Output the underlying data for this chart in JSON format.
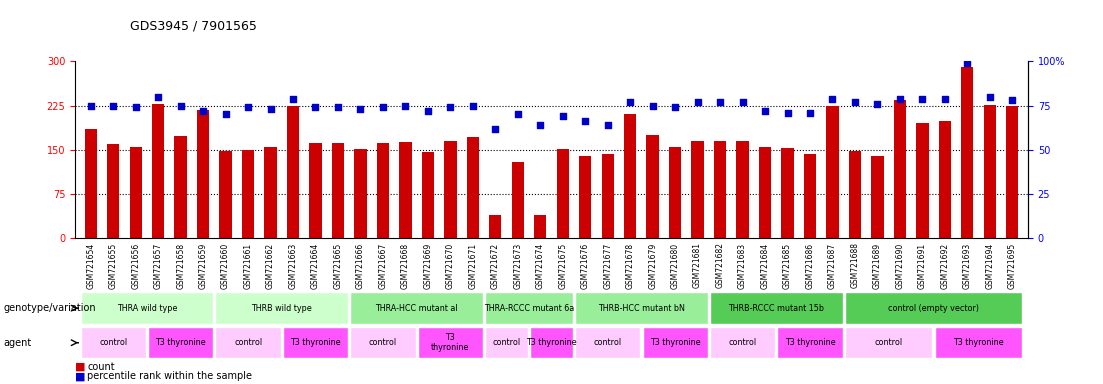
{
  "title": "GDS3945 / 7901565",
  "samples": [
    "GSM721654",
    "GSM721655",
    "GSM721656",
    "GSM721657",
    "GSM721658",
    "GSM721659",
    "GSM721660",
    "GSM721661",
    "GSM721662",
    "GSM721663",
    "GSM721664",
    "GSM721665",
    "GSM721666",
    "GSM721667",
    "GSM721668",
    "GSM721669",
    "GSM721670",
    "GSM721671",
    "GSM721672",
    "GSM721673",
    "GSM721674",
    "GSM721675",
    "GSM721676",
    "GSM721677",
    "GSM721678",
    "GSM721679",
    "GSM721680",
    "GSM721681",
    "GSM721682",
    "GSM721683",
    "GSM721684",
    "GSM721685",
    "GSM721686",
    "GSM721687",
    "GSM721688",
    "GSM721689",
    "GSM721690",
    "GSM721691",
    "GSM721692",
    "GSM721693",
    "GSM721694",
    "GSM721695"
  ],
  "counts": [
    185,
    160,
    155,
    228,
    173,
    218,
    148,
    150,
    155,
    224,
    161,
    161,
    151,
    161,
    163,
    147,
    165,
    172,
    40,
    130,
    40,
    152,
    140,
    143,
    210,
    175,
    155,
    165,
    165,
    165,
    155,
    153,
    143,
    225,
    148,
    140,
    235,
    195,
    198,
    290,
    226,
    225
  ],
  "percentiles": [
    75,
    75,
    74,
    80,
    75,
    72,
    70,
    74,
    73,
    79,
    74,
    74,
    73,
    74,
    75,
    72,
    74,
    75,
    62,
    70,
    64,
    69,
    66,
    64,
    77,
    75,
    74,
    77,
    77,
    77,
    72,
    71,
    71,
    79,
    77,
    76,
    79,
    79,
    79,
    99,
    80,
    78
  ],
  "bar_color": "#cc0000",
  "dot_color": "#0000cc",
  "genotype_groups": [
    {
      "label": "THRA wild type",
      "start": 0,
      "end": 5,
      "color": "#ccffcc"
    },
    {
      "label": "THRB wild type",
      "start": 6,
      "end": 11,
      "color": "#ccffcc"
    },
    {
      "label": "THRA-HCC mutant al",
      "start": 12,
      "end": 17,
      "color": "#99ee99"
    },
    {
      "label": "THRA-RCCC mutant 6a",
      "start": 18,
      "end": 21,
      "color": "#99ee99"
    },
    {
      "label": "THRB-HCC mutant bN",
      "start": 22,
      "end": 27,
      "color": "#99ee99"
    },
    {
      "label": "THRB-RCCC mutant 15b",
      "start": 28,
      "end": 33,
      "color": "#55cc55"
    },
    {
      "label": "control (empty vector)",
      "start": 34,
      "end": 41,
      "color": "#55cc55"
    }
  ],
  "agent_groups": [
    {
      "label": "control",
      "start": 0,
      "end": 2,
      "color": "#ffccff"
    },
    {
      "label": "T3 thyronine",
      "start": 3,
      "end": 5,
      "color": "#ff55ff"
    },
    {
      "label": "control",
      "start": 6,
      "end": 8,
      "color": "#ffccff"
    },
    {
      "label": "T3 thyronine",
      "start": 9,
      "end": 11,
      "color": "#ff55ff"
    },
    {
      "label": "control",
      "start": 12,
      "end": 14,
      "color": "#ffccff"
    },
    {
      "label": "T3\nthyronine",
      "start": 15,
      "end": 17,
      "color": "#ff55ff"
    },
    {
      "label": "control",
      "start": 18,
      "end": 19,
      "color": "#ffccff"
    },
    {
      "label": "T3 thyronine",
      "start": 20,
      "end": 21,
      "color": "#ff55ff"
    },
    {
      "label": "control",
      "start": 22,
      "end": 24,
      "color": "#ffccff"
    },
    {
      "label": "T3 thyronine",
      "start": 25,
      "end": 27,
      "color": "#ff55ff"
    },
    {
      "label": "control",
      "start": 28,
      "end": 30,
      "color": "#ffccff"
    },
    {
      "label": "T3 thyronine",
      "start": 31,
      "end": 33,
      "color": "#ff55ff"
    },
    {
      "label": "control",
      "start": 34,
      "end": 37,
      "color": "#ffccff"
    },
    {
      "label": "T3 thyronine",
      "start": 38,
      "end": 41,
      "color": "#ff55ff"
    }
  ],
  "legend_count_label": "count",
  "legend_pct_label": "percentile rank within the sample",
  "genotype_row_label": "genotype/variation",
  "agent_row_label": "agent"
}
